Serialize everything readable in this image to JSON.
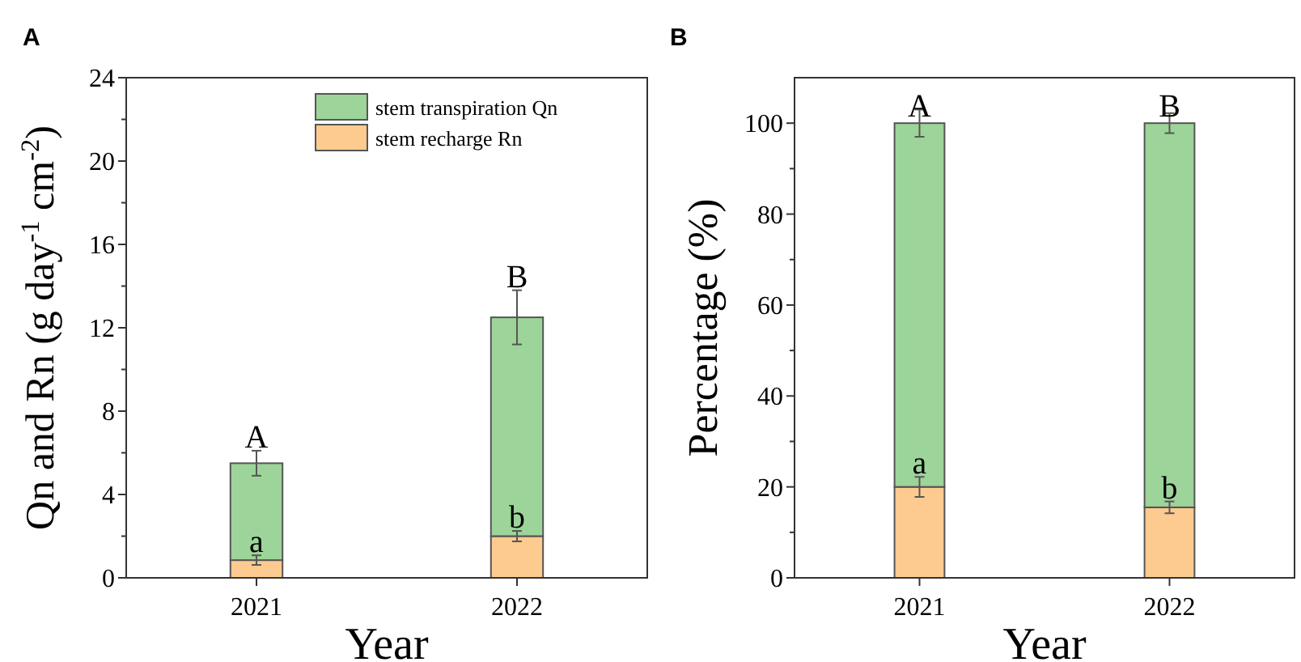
{
  "chart_data": [
    {
      "type": "bar",
      "title": "A",
      "xlabel": "Year",
      "ylabel": "Qn and Rn (g day$^{-1}$ cm$^{-2}$)",
      "categories": [
        "2021",
        "2022"
      ],
      "stacked": true,
      "series": [
        {
          "name": "stem recharge Rn",
          "color": "#fdcb8f",
          "values": [
            0.85,
            2.0
          ],
          "errors": [
            0.23,
            0.25
          ]
        },
        {
          "name": "stem transpiration Qn",
          "color": "#9dd49a",
          "values": [
            4.65,
            10.5
          ],
          "errors": [
            0.6,
            1.3
          ]
        }
      ],
      "ylim": [
        0,
        24
      ],
      "yticks": [
        0,
        {
          "value": 2,
          "label": null
        },
        4,
        {
          "value": 6,
          "label": null
        },
        8,
        {
          "value": 10,
          "label": null
        },
        12,
        {
          "value": 14,
          "label": null
        },
        16,
        {
          "value": 18,
          "label": null
        },
        20,
        {
          "value": 22,
          "label": null
        },
        24
      ],
      "legend": "top right",
      "annotations": [
        {
          "text": "A",
          "x": "2021",
          "y": 5.5
        },
        {
          "text": "B",
          "x": "2022",
          "y": 12.5
        },
        {
          "text": "a",
          "x": "2021",
          "y": 0.85
        },
        {
          "text": "b",
          "x": "2022",
          "y": 2.0
        }
      ]
    },
    {
      "type": "bar",
      "title": "B",
      "xlabel": "Year",
      "ylabel": "Percentage (%)",
      "categories": [
        "2021",
        "2022"
      ],
      "stacked": true,
      "series": [
        {
          "color": "#fdcb8f",
          "values": [
            20,
            15.5
          ],
          "errors": [
            2.2,
            1.3
          ]
        },
        {
          "color": "#9dd49a",
          "values": [
            80,
            84.5
          ],
          "errors": [
            3,
            2.2
          ]
        }
      ],
      "ylim": [
        0,
        110
      ],
      "yticks": [
        0,
        {
          "value": 10,
          "label": null
        },
        20,
        {
          "value": 30,
          "label": null
        },
        40,
        {
          "value": 50,
          "label": null
        },
        60,
        {
          "value": 70,
          "label": null
        },
        80,
        {
          "value": 90,
          "label": null
        },
        100
      ],
      "annotations": [
        {
          "text": "A",
          "x": "2021",
          "y": 100
        },
        {
          "text": "B",
          "x": "2022",
          "y": 100
        },
        {
          "text": "a",
          "x": "2021",
          "y": 20
        },
        {
          "text": "b",
          "x": "2022",
          "y": 15.5
        }
      ]
    }
  ]
}
